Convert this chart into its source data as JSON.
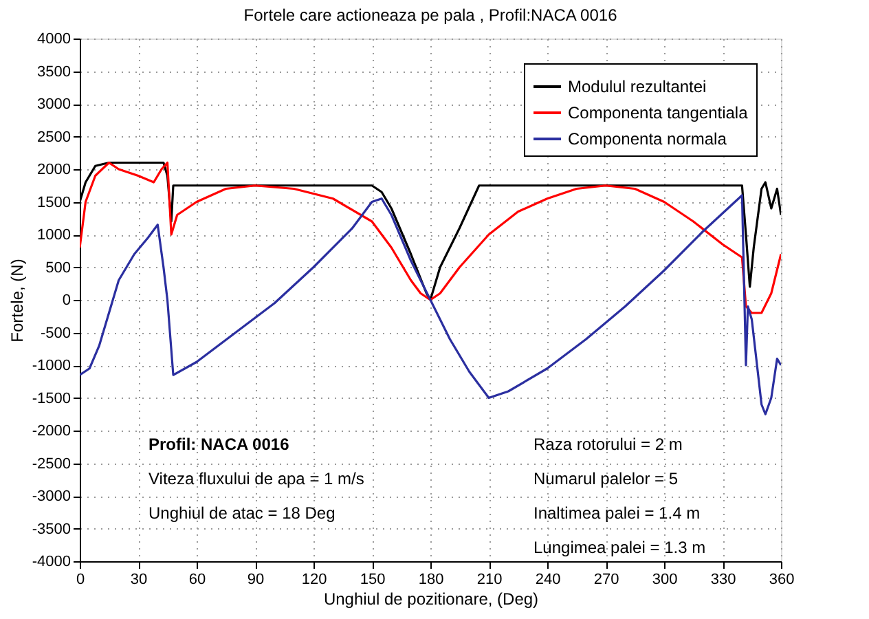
{
  "chart_data": {
    "type": "line",
    "title": "Fortele care actioneaza pe pala , Profil:NACA 0016",
    "xlabel": "Unghiul de pozitionare, (Deg)",
    "ylabel": "Fortele, (N)",
    "xlim": [
      0,
      360
    ],
    "ylim": [
      -4000,
      4000
    ],
    "xticks": [
      0,
      30,
      60,
      90,
      120,
      150,
      180,
      210,
      240,
      270,
      300,
      330,
      360
    ],
    "yticks": [
      -4000,
      -3500,
      -3000,
      -2500,
      -2000,
      -1500,
      -1000,
      -500,
      0,
      500,
      1000,
      1500,
      2000,
      2500,
      3000,
      3500,
      4000
    ],
    "grid": true,
    "legend": "top right",
    "line_style": "solid",
    "marker": "none",
    "annotations": [
      "Profil: NACA 0016",
      "Viteza fluxului de apa = 1 m/s",
      "Unghiul de atac = 18 Deg",
      "Raza rotorului = 2 m",
      "Numarul palelor = 5",
      "Inaltimea palei = 1.4 m",
      "Lungimea palei = 1.3 m"
    ],
    "series": [
      {
        "name": "Modulul rezultantei",
        "color": "#000000",
        "x": [
          0,
          3,
          8,
          15,
          25,
          35,
          43,
          45,
          47,
          48,
          60,
          90,
          120,
          150,
          155,
          160,
          170,
          178,
          180,
          185,
          195,
          205,
          240,
          270,
          300,
          340,
          342,
          344,
          346,
          350,
          352,
          355,
          358,
          360
        ],
        "values": [
          1500,
          1800,
          2050,
          2100,
          2100,
          2100,
          2100,
          1900,
          1200,
          1750,
          1750,
          1750,
          1750,
          1750,
          1650,
          1400,
          700,
          100,
          0,
          500,
          1100,
          1750,
          1750,
          1750,
          1750,
          1750,
          1000,
          200,
          800,
          1700,
          1800,
          1400,
          1700,
          1300
        ]
      },
      {
        "name": "Componenta tangentiala",
        "color": "#ff0000",
        "x": [
          0,
          3,
          8,
          15,
          20,
          30,
          38,
          42,
          45,
          47,
          50,
          60,
          75,
          90,
          110,
          130,
          150,
          160,
          170,
          175,
          180,
          185,
          195,
          210,
          225,
          240,
          255,
          270,
          285,
          300,
          315,
          330,
          340,
          342,
          345,
          350,
          355,
          360
        ],
        "values": [
          800,
          1500,
          1900,
          2100,
          2000,
          1900,
          1800,
          2000,
          2100,
          1000,
          1300,
          1500,
          1700,
          1750,
          1700,
          1550,
          1200,
          800,
          300,
          100,
          0,
          100,
          500,
          1000,
          1350,
          1550,
          1700,
          1750,
          1700,
          1500,
          1200,
          850,
          650,
          -100,
          -200,
          -200,
          100,
          700
        ]
      },
      {
        "name": "Componenta normala",
        "color": "#2b2fa0",
        "x": [
          0,
          5,
          10,
          20,
          28,
          35,
          40,
          43,
          45,
          48,
          60,
          80,
          100,
          120,
          140,
          150,
          155,
          160,
          170,
          180,
          190,
          200,
          210,
          220,
          240,
          260,
          280,
          300,
          320,
          340,
          342,
          343,
          345,
          350,
          352,
          355,
          358,
          360
        ],
        "values": [
          -1150,
          -1050,
          -700,
          300,
          700,
          950,
          1150,
          500,
          0,
          -1150,
          -950,
          -500,
          -50,
          500,
          1100,
          1500,
          1550,
          1300,
          600,
          0,
          -600,
          -1100,
          -1500,
          -1400,
          -1050,
          -600,
          -100,
          450,
          1050,
          1600,
          -1000,
          -100,
          -300,
          -1600,
          -1750,
          -1500,
          -900,
          -1000
        ]
      }
    ]
  }
}
